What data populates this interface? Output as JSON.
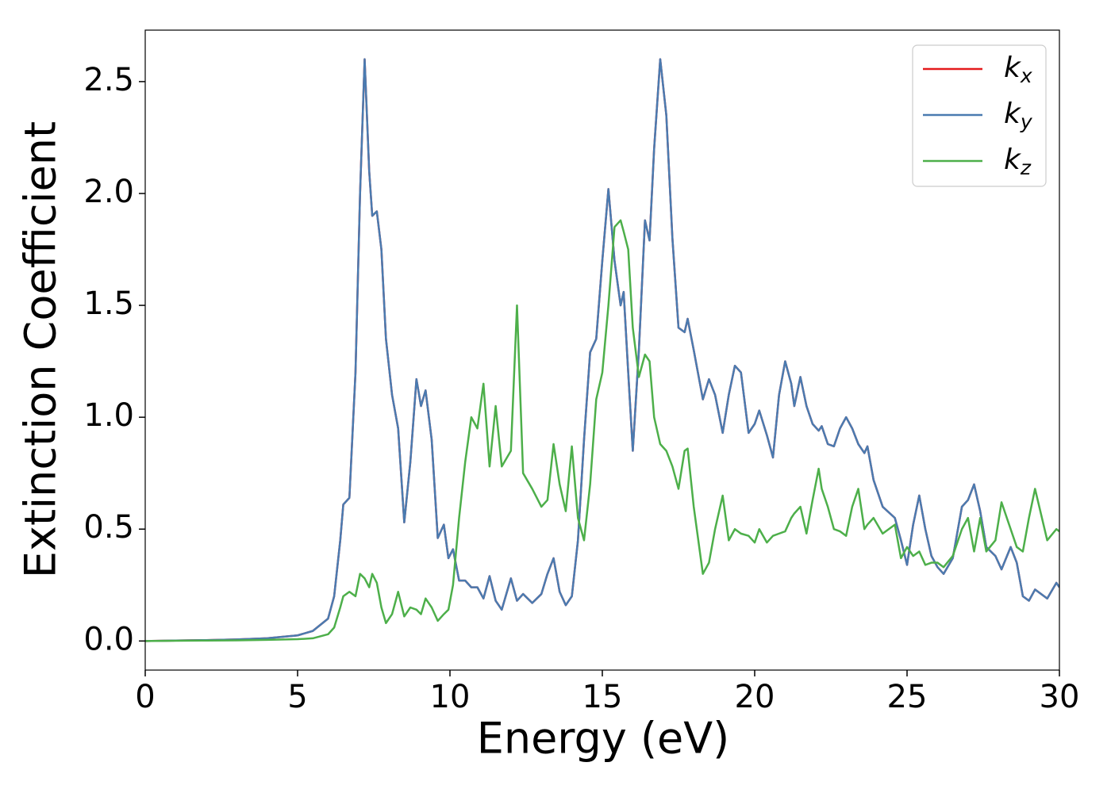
{
  "chart_data": {
    "type": "line",
    "xlabel": "Energy (eV)",
    "ylabel": "Extinction Coefficient",
    "x": [
      0,
      1,
      2,
      3,
      4,
      5,
      5.5,
      6,
      6.2,
      6.4,
      6.5,
      6.7,
      6.9,
      7.05,
      7.2,
      7.35,
      7.45,
      7.6,
      7.75,
      7.9,
      8.1,
      8.3,
      8.5,
      8.7,
      8.9,
      9.05,
      9.2,
      9.4,
      9.6,
      9.8,
      9.95,
      10.1,
      10.3,
      10.5,
      10.7,
      10.9,
      11.1,
      11.3,
      11.5,
      11.7,
      12.0,
      12.2,
      12.4,
      12.7,
      13.0,
      13.2,
      13.4,
      13.6,
      13.8,
      14.0,
      14.2,
      14.4,
      14.6,
      14.8,
      15.0,
      15.2,
      15.4,
      15.6,
      15.7,
      15.85,
      16.0,
      16.2,
      16.4,
      16.55,
      16.7,
      16.9,
      17.1,
      17.3,
      17.5,
      17.7,
      17.8,
      18.0,
      18.3,
      18.5,
      18.7,
      18.95,
      19.15,
      19.35,
      19.55,
      19.8,
      20.0,
      20.15,
      20.4,
      20.6,
      20.8,
      21.0,
      21.2,
      21.3,
      21.5,
      21.7,
      21.9,
      22.1,
      22.2,
      22.4,
      22.6,
      22.8,
      23.0,
      23.2,
      23.4,
      23.6,
      23.7,
      23.9,
      24.2,
      24.6,
      24.8,
      25.0,
      25.2,
      25.4,
      25.6,
      25.8,
      26.0,
      26.2,
      26.5,
      26.8,
      27.0,
      27.2,
      27.4,
      27.6,
      27.9,
      28.1,
      28.4,
      28.6,
      28.8,
      29.0,
      29.2,
      29.6,
      29.9,
      30
    ],
    "series": [
      {
        "name": "k_x",
        "color": "#e41a1c",
        "values": [
          0,
          0.002,
          0.004,
          0.007,
          0.012,
          0.025,
          0.045,
          0.1,
          0.2,
          0.45,
          0.61,
          0.64,
          1.2,
          2.0,
          2.6,
          2.1,
          1.9,
          1.92,
          1.75,
          1.35,
          1.1,
          0.95,
          0.53,
          0.8,
          1.17,
          1.05,
          1.12,
          0.9,
          0.46,
          0.52,
          0.37,
          0.41,
          0.27,
          0.27,
          0.24,
          0.24,
          0.19,
          0.29,
          0.18,
          0.14,
          0.28,
          0.18,
          0.21,
          0.17,
          0.21,
          0.3,
          0.37,
          0.22,
          0.16,
          0.2,
          0.45,
          0.9,
          1.29,
          1.35,
          1.7,
          2.02,
          1.7,
          1.5,
          1.56,
          1.2,
          0.85,
          1.3,
          1.88,
          1.79,
          2.2,
          2.6,
          2.35,
          1.8,
          1.4,
          1.38,
          1.44,
          1.3,
          1.08,
          1.17,
          1.1,
          0.93,
          1.1,
          1.23,
          1.2,
          0.93,
          0.97,
          1.03,
          0.92,
          0.82,
          1.1,
          1.25,
          1.15,
          1.05,
          1.18,
          1.05,
          0.97,
          0.94,
          0.96,
          0.88,
          0.87,
          0.95,
          1.0,
          0.95,
          0.88,
          0.84,
          0.87,
          0.72,
          0.6,
          0.55,
          0.45,
          0.34,
          0.52,
          0.65,
          0.5,
          0.38,
          0.33,
          0.3,
          0.37,
          0.6,
          0.63,
          0.7,
          0.58,
          0.42,
          0.38,
          0.32,
          0.42,
          0.35,
          0.2,
          0.18,
          0.23,
          0.19,
          0.26,
          0.24
        ]
      },
      {
        "name": "k_y",
        "color": "#4a7bb0",
        "values": [
          0,
          0.002,
          0.004,
          0.007,
          0.012,
          0.025,
          0.045,
          0.1,
          0.2,
          0.45,
          0.61,
          0.64,
          1.2,
          2.0,
          2.6,
          2.1,
          1.9,
          1.92,
          1.75,
          1.35,
          1.1,
          0.95,
          0.53,
          0.8,
          1.17,
          1.05,
          1.12,
          0.9,
          0.46,
          0.52,
          0.37,
          0.41,
          0.27,
          0.27,
          0.24,
          0.24,
          0.19,
          0.29,
          0.18,
          0.14,
          0.28,
          0.18,
          0.21,
          0.17,
          0.21,
          0.3,
          0.37,
          0.22,
          0.16,
          0.2,
          0.45,
          0.9,
          1.29,
          1.35,
          1.7,
          2.02,
          1.7,
          1.5,
          1.56,
          1.2,
          0.85,
          1.3,
          1.88,
          1.79,
          2.2,
          2.6,
          2.35,
          1.8,
          1.4,
          1.38,
          1.44,
          1.3,
          1.08,
          1.17,
          1.1,
          0.93,
          1.1,
          1.23,
          1.2,
          0.93,
          0.97,
          1.03,
          0.92,
          0.82,
          1.1,
          1.25,
          1.15,
          1.05,
          1.18,
          1.05,
          0.97,
          0.94,
          0.96,
          0.88,
          0.87,
          0.95,
          1.0,
          0.95,
          0.88,
          0.84,
          0.87,
          0.72,
          0.6,
          0.55,
          0.45,
          0.34,
          0.52,
          0.65,
          0.5,
          0.38,
          0.33,
          0.3,
          0.37,
          0.6,
          0.63,
          0.7,
          0.58,
          0.42,
          0.38,
          0.32,
          0.42,
          0.35,
          0.2,
          0.18,
          0.23,
          0.19,
          0.26,
          0.24
        ]
      },
      {
        "name": "k_z",
        "color": "#4daf4a",
        "values": [
          0,
          0.001,
          0.002,
          0.003,
          0.005,
          0.008,
          0.012,
          0.03,
          0.06,
          0.15,
          0.2,
          0.22,
          0.2,
          0.3,
          0.28,
          0.24,
          0.3,
          0.26,
          0.15,
          0.08,
          0.12,
          0.22,
          0.11,
          0.15,
          0.14,
          0.12,
          0.19,
          0.15,
          0.09,
          0.12,
          0.14,
          0.25,
          0.55,
          0.8,
          1.0,
          0.95,
          1.15,
          0.78,
          1.05,
          0.78,
          0.85,
          1.5,
          0.75,
          0.68,
          0.6,
          0.63,
          0.88,
          0.7,
          0.58,
          0.87,
          0.55,
          0.45,
          0.7,
          1.08,
          1.2,
          1.5,
          1.85,
          1.88,
          1.83,
          1.75,
          1.4,
          1.18,
          1.28,
          1.25,
          1.0,
          0.88,
          0.85,
          0.78,
          0.68,
          0.85,
          0.86,
          0.6,
          0.3,
          0.35,
          0.5,
          0.65,
          0.45,
          0.5,
          0.48,
          0.47,
          0.44,
          0.5,
          0.44,
          0.47,
          0.48,
          0.49,
          0.55,
          0.57,
          0.6,
          0.48,
          0.63,
          0.77,
          0.68,
          0.6,
          0.5,
          0.49,
          0.47,
          0.6,
          0.68,
          0.5,
          0.52,
          0.55,
          0.48,
          0.52,
          0.37,
          0.42,
          0.38,
          0.4,
          0.34,
          0.35,
          0.35,
          0.33,
          0.38,
          0.5,
          0.55,
          0.4,
          0.55,
          0.4,
          0.45,
          0.62,
          0.5,
          0.42,
          0.4,
          0.55,
          0.68,
          0.45,
          0.5,
          0.49
        ]
      }
    ],
    "xlim": [
      0,
      30
    ],
    "xticks": [
      0,
      5,
      10,
      15,
      20,
      25,
      30
    ],
    "ylim": [
      -0.13,
      2.73
    ],
    "yticks": [
      {
        "value": 0,
        "label": "0.0"
      },
      {
        "value": 0.5,
        "label": "0.5"
      },
      {
        "value": 1,
        "label": "1.0"
      },
      {
        "value": 1.5,
        "label": "1.5"
      },
      {
        "value": 2,
        "label": "2.0"
      },
      {
        "value": 2.5,
        "label": "2.5"
      }
    ],
    "legend": "upper right"
  }
}
